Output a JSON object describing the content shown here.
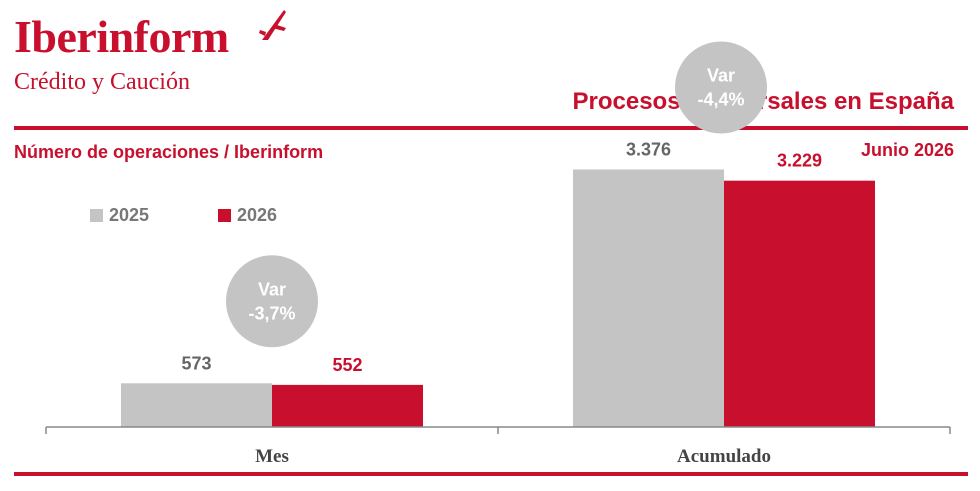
{
  "brand": {
    "name": "Iberinform",
    "tagline": "Crédito y Caución"
  },
  "header": {
    "title": "Procesos concursales en España",
    "subtitle": "Número de operaciones / Iberinform",
    "period": "Junio 2026"
  },
  "colors": {
    "accent": "#c8102e",
    "series_2025": "#c4c4c4",
    "series_2026": "#c8102e",
    "bubble": "#c4c4c4",
    "axis": "#888888"
  },
  "chart_data": {
    "type": "bar",
    "categories": [
      "Mes",
      "Acumulado"
    ],
    "series": [
      {
        "name": "2025",
        "values": [
          573,
          3376
        ],
        "labels": [
          "573",
          "3.376"
        ]
      },
      {
        "name": "2026",
        "values": [
          552,
          3229
        ],
        "labels": [
          "552",
          "3.229"
        ]
      }
    ],
    "annotations": [
      {
        "category": "Mes",
        "line1": "Var",
        "line2": "-3,7%"
      },
      {
        "category": "Acumulado",
        "line1": "Var",
        "line2": "-4,4%"
      }
    ],
    "legend": "top-left",
    "grid": false,
    "ylim": [
      0,
      3500
    ]
  }
}
